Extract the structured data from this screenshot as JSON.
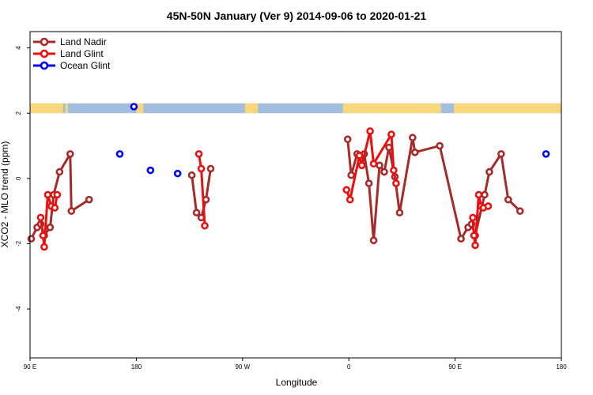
{
  "chart_data": {
    "type": "line",
    "title": "45N-50N January (Ver 9)   2014-09-06 to 2020-01-21",
    "xlabel": "Longitude",
    "ylabel": "XCO2 - MLO trend (ppm)",
    "xlim": [
      90,
      540
    ],
    "ylim": [
      -5.5,
      4.5
    ],
    "x_ticks": [
      {
        "value": 90,
        "label": "90 E"
      },
      {
        "value": 180,
        "label": "180"
      },
      {
        "value": 270,
        "label": "90 W"
      },
      {
        "value": 360,
        "label": "0"
      },
      {
        "value": 450,
        "label": "90 E"
      },
      {
        "value": 540,
        "label": "180"
      }
    ],
    "y_ticks": [
      {
        "value": -4,
        "label": "-4"
      },
      {
        "value": -2,
        "label": "-2"
      },
      {
        "value": 0,
        "label": "0"
      },
      {
        "value": 2,
        "label": "2"
      },
      {
        "value": 4,
        "label": "4"
      }
    ],
    "legend": {
      "position": "top-left"
    },
    "map_strip": {
      "y_range": [
        2.0,
        2.3
      ],
      "land_color": "#f7d77c",
      "ocean_color": "#a3bddf"
    },
    "series": [
      {
        "name": "Land Nadir",
        "color": "#a52a2a",
        "points": [
          [
            91,
            -1.85
          ],
          [
            96,
            -1.5
          ],
          [
            99,
            -1.4
          ],
          [
            102,
            -1.75
          ],
          [
            110,
            -0.5
          ],
          [
            124,
            0.75
          ],
          [
            140,
            -0.65
          ],
          [
            107,
            -1.5
          ],
          [
            115,
            0.2
          ],
          [
            125,
            -1.0
          ],
          [
            227,
            0.1
          ],
          [
            231,
            -1.05
          ],
          [
            235,
            -1.2
          ],
          [
            239,
            -0.65
          ],
          [
            243,
            0.3
          ],
          [
            359,
            1.2
          ],
          [
            362,
            0.1
          ],
          [
            367,
            0.75
          ],
          [
            370,
            0.7
          ],
          [
            373,
            0.75
          ],
          [
            377,
            -0.15
          ],
          [
            381,
            -1.9
          ],
          [
            386,
            0.4
          ],
          [
            390,
            0.2
          ],
          [
            394,
            0.95
          ],
          [
            399,
            0.05
          ],
          [
            403,
            -1.05
          ],
          [
            414,
            1.25
          ],
          [
            416,
            0.8
          ],
          [
            437,
            1.0
          ],
          [
            455,
            -1.85
          ],
          [
            461,
            -1.5
          ],
          [
            464,
            -1.4
          ],
          [
            467,
            -1.75
          ],
          [
            475,
            -0.5
          ],
          [
            479,
            0.2
          ],
          [
            489,
            0.75
          ],
          [
            495,
            -0.65
          ],
          [
            505,
            -1.0
          ]
        ]
      },
      {
        "name": "Land Glint",
        "color": "#e81010",
        "points": [
          [
            99,
            -1.2
          ],
          [
            101,
            -1.75
          ],
          [
            102,
            -2.1
          ],
          [
            105,
            -0.5
          ],
          [
            108,
            -0.85
          ],
          [
            111,
            -0.9
          ],
          [
            113,
            -0.5
          ],
          [
            233,
            0.75
          ],
          [
            235,
            0.3
          ],
          [
            238,
            -1.45
          ],
          [
            358,
            -0.35
          ],
          [
            361,
            -0.65
          ],
          [
            369,
            0.7
          ],
          [
            371,
            0.4
          ],
          [
            378,
            1.45
          ],
          [
            381,
            0.45
          ],
          [
            396,
            1.35
          ],
          [
            398,
            0.25
          ],
          [
            400,
            -0.15
          ],
          [
            465,
            -1.2
          ],
          [
            466,
            -1.75
          ],
          [
            467,
            -2.05
          ],
          [
            470,
            -0.5
          ],
          [
            472,
            -0.85
          ],
          [
            474,
            -0.9
          ],
          [
            478,
            -0.85
          ]
        ]
      },
      {
        "name": "Ocean Glint",
        "color": "#0000ee",
        "points": [
          [
            166,
            0.75
          ],
          [
            178,
            2.2
          ],
          [
            192,
            0.25
          ],
          [
            215,
            0.15
          ],
          [
            527,
            0.75
          ]
        ]
      }
    ]
  }
}
